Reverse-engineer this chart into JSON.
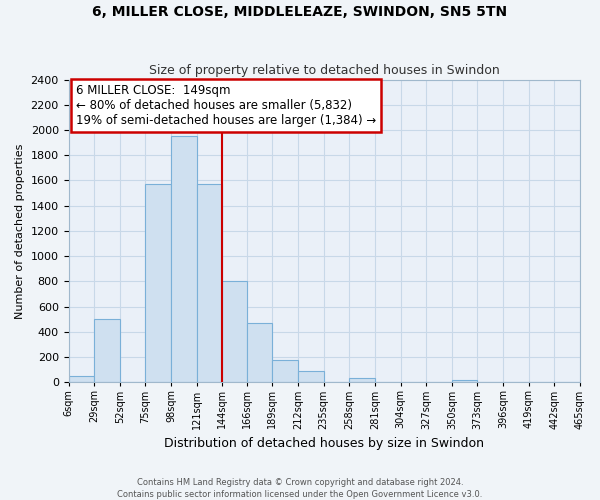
{
  "title": "6, MILLER CLOSE, MIDDLELEAZE, SWINDON, SN5 5TN",
  "subtitle": "Size of property relative to detached houses in Swindon",
  "xlabel": "Distribution of detached houses by size in Swindon",
  "ylabel": "Number of detached properties",
  "bar_color": "#cfe0f0",
  "bar_edge_color": "#7ab0d8",
  "bin_edges": [
    6,
    29,
    52,
    75,
    98,
    121,
    144,
    166,
    189,
    212,
    235,
    258,
    281,
    304,
    327,
    350,
    373,
    396,
    419,
    442,
    465
  ],
  "bin_labels": [
    "6sqm",
    "29sqm",
    "52sqm",
    "75sqm",
    "98sqm",
    "121sqm",
    "144sqm",
    "166sqm",
    "189sqm",
    "212sqm",
    "235sqm",
    "258sqm",
    "281sqm",
    "304sqm",
    "327sqm",
    "350sqm",
    "373sqm",
    "396sqm",
    "419sqm",
    "442sqm",
    "465sqm"
  ],
  "counts": [
    50,
    500,
    0,
    1575,
    1950,
    1575,
    800,
    470,
    180,
    90,
    0,
    35,
    0,
    0,
    0,
    15,
    0,
    0,
    0,
    0
  ],
  "ylim": [
    0,
    2400
  ],
  "yticks": [
    0,
    200,
    400,
    600,
    800,
    1000,
    1200,
    1400,
    1600,
    1800,
    2000,
    2200,
    2400
  ],
  "vline_x": 144,
  "vline_color": "#cc0000",
  "annotation_title": "6 MILLER CLOSE:  149sqm",
  "annotation_line1": "← 80% of detached houses are smaller (5,832)",
  "annotation_line2": "19% of semi-detached houses are larger (1,384) →",
  "annotation_box_facecolor": "#ffffff",
  "annotation_box_edgecolor": "#cc0000",
  "footer_line1": "Contains HM Land Registry data © Crown copyright and database right 2024.",
  "footer_line2": "Contains public sector information licensed under the Open Government Licence v3.0.",
  "fig_facecolor": "#f0f4f8",
  "plot_bg_color": "#eaf0f8",
  "grid_color": "#c8d8e8",
  "spine_color": "#a0b8cc",
  "title_fontsize": 10,
  "subtitle_fontsize": 9,
  "ylabel_fontsize": 8,
  "xlabel_fontsize": 9,
  "tick_fontsize": 8,
  "xtick_fontsize": 7
}
